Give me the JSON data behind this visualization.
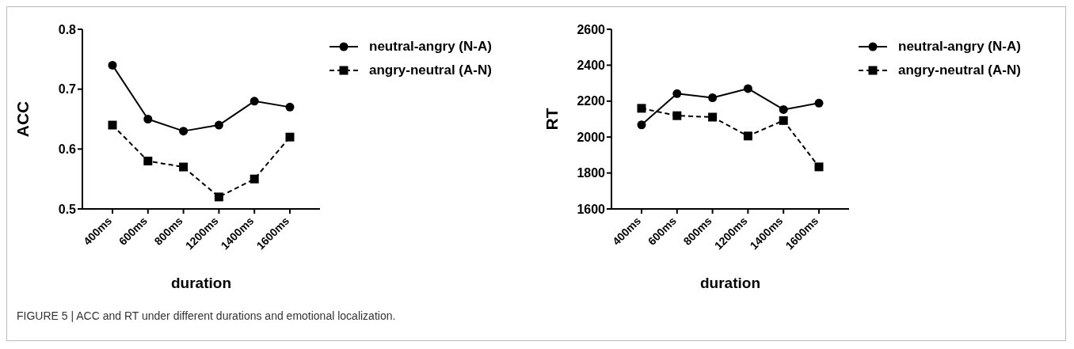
{
  "chart_data": [
    {
      "type": "line",
      "xlabel": "duration",
      "ylabel": "ACC",
      "categories": [
        "400ms",
        "600ms",
        "800ms",
        "1200ms",
        "1400ms",
        "1600ms"
      ],
      "ylim": [
        0.5,
        0.8
      ],
      "yticks": [
        0.5,
        0.6,
        0.7,
        0.8
      ],
      "grid": false,
      "legend": "top right",
      "series": [
        {
          "name": "neutral-angry (N-A)",
          "color": "#000000",
          "marker": "circle",
          "line_style": "solid",
          "values": [
            0.74,
            0.65,
            0.63,
            0.64,
            0.68,
            0.67
          ]
        },
        {
          "name": "angry-neutral (A-N)",
          "color": "#000000",
          "marker": "square",
          "line_style": "dashed",
          "values": [
            0.64,
            0.58,
            0.57,
            0.52,
            0.55,
            0.62
          ]
        }
      ],
      "annotations": [
        "FIGURE 5 | ACC and RT under different durations and emotional localization."
      ]
    },
    {
      "type": "line",
      "xlabel": "duration",
      "ylabel": "RT",
      "categories": [
        "400ms",
        "600ms",
        "800ms",
        "1200ms",
        "1400ms",
        "1600ms"
      ],
      "ylim": [
        1600,
        2600
      ],
      "yticks": [
        1600,
        1800,
        2000,
        2200,
        2400,
        2600
      ],
      "grid": false,
      "legend": "top right",
      "series": [
        {
          "name": "neutral-angry (N-A)",
          "color": "#000000",
          "marker": "circle",
          "line_style": "solid",
          "values": [
            2068,
            2242,
            2219,
            2270,
            2153,
            2189
          ]
        },
        {
          "name": "angry-neutral (A-N)",
          "color": "#000000",
          "marker": "square",
          "line_style": "dashed",
          "values": [
            2160,
            2119,
            2111,
            2006,
            2092,
            1834
          ]
        }
      ]
    }
  ]
}
